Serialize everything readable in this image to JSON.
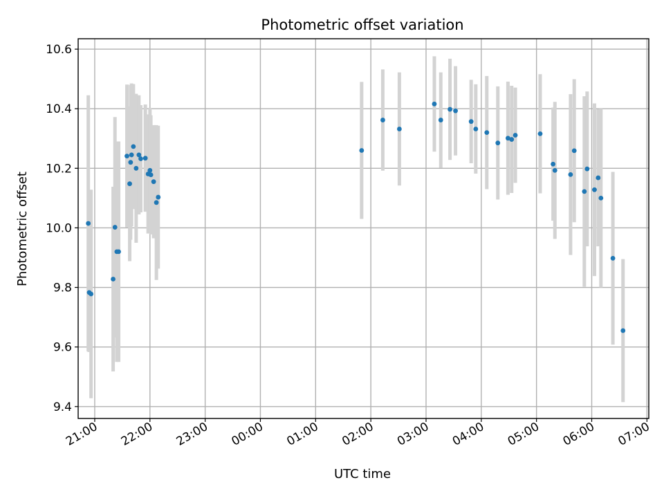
{
  "chart_data": {
    "type": "scatter",
    "title": "Photometric offset variation",
    "xlabel": "UTC time",
    "ylabel": "Photometric offset",
    "x_ticks": [
      "21:00",
      "22:00",
      "23:00",
      "00:00",
      "01:00",
      "02:00",
      "03:00",
      "04:00",
      "05:00",
      "06:00",
      "07:00"
    ],
    "y_ticks": [
      "9.4",
      "9.6",
      "9.8",
      "10.0",
      "10.2",
      "10.4",
      "10.6"
    ],
    "xlim": [
      "20:42",
      "07:02"
    ],
    "ylim": [
      9.36,
      10.635
    ],
    "grid": true,
    "point_color": "#1f77b4",
    "errorbar_color": "#d3d3d3",
    "series": [
      {
        "x": [
          "20:53",
          "20:54",
          "20:56",
          "21:20",
          "21:22",
          "21:24",
          "21:26",
          "21:35",
          "21:38",
          "21:39",
          "21:40",
          "21:42",
          "21:45",
          "21:48",
          "21:50",
          "21:55",
          "21:58",
          "22:00",
          "22:01",
          "22:04",
          "22:07",
          "22:09",
          "01:50",
          "02:13",
          "02:31",
          "03:09",
          "03:16",
          "03:26",
          "03:32",
          "03:49",
          "03:54",
          "04:06",
          "04:18",
          "04:29",
          "04:33",
          "04:37",
          "05:04",
          "05:18",
          "05:20",
          "05:37",
          "05:41",
          "05:52",
          "05:55",
          "06:03",
          "06:07",
          "06:10",
          "06:23",
          "06:34"
        ],
        "y": [
          10.015,
          9.783,
          9.778,
          9.828,
          10.002,
          9.92,
          9.92,
          10.241,
          10.148,
          10.22,
          10.245,
          10.273,
          10.2,
          10.245,
          10.232,
          10.234,
          10.181,
          10.193,
          10.178,
          10.155,
          10.085,
          10.103,
          10.26,
          10.362,
          10.332,
          10.416,
          10.362,
          10.398,
          10.393,
          10.357,
          10.332,
          10.32,
          10.285,
          10.301,
          10.297,
          10.311,
          10.316,
          10.214,
          10.193,
          10.179,
          10.259,
          10.122,
          10.198,
          10.128,
          10.168,
          10.1,
          9.898,
          9.655
        ],
        "err": [
          0.43,
          0.2,
          0.35,
          0.31,
          0.37,
          0.37,
          0.37,
          0.24,
          0.26,
          0.26,
          0.24,
          0.21,
          0.25,
          0.2,
          0.18,
          0.18,
          0.2,
          0.21,
          0.2,
          0.19,
          0.26,
          0.24,
          0.23,
          0.17,
          0.19,
          0.16,
          0.16,
          0.17,
          0.15,
          0.14,
          0.15,
          0.19,
          0.19,
          0.19,
          0.18,
          0.16,
          0.2,
          0.19,
          0.23,
          0.27,
          0.24,
          0.32,
          0.26,
          0.29,
          0.23,
          0.3,
          0.29,
          0.24
        ]
      }
    ]
  }
}
